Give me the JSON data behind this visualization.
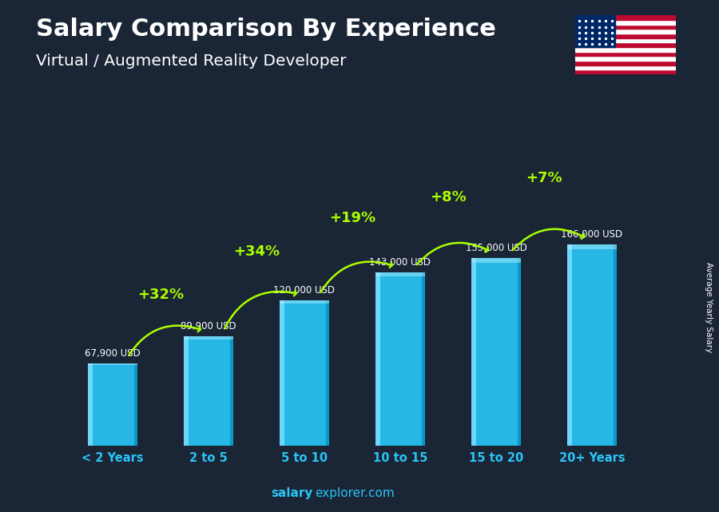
{
  "title_line1": "Salary Comparison By Experience",
  "title_line2": "Virtual / Augmented Reality Developer",
  "categories": [
    "< 2 Years",
    "2 to 5",
    "5 to 10",
    "10 to 15",
    "15 to 20",
    "20+ Years"
  ],
  "values": [
    67900,
    89900,
    120000,
    143000,
    155000,
    166000
  ],
  "value_labels": [
    "67,900 USD",
    "89,900 USD",
    "120,000 USD",
    "143,000 USD",
    "155,000 USD",
    "166,000 USD"
  ],
  "pct_labels": [
    "+32%",
    "+34%",
    "+19%",
    "+8%",
    "+7%"
  ],
  "bar_color_main": "#29c5f6",
  "bar_color_light": "#7addff",
  "bar_color_dark": "#0090c0",
  "bar_color_top": "#aaeeff",
  "bg_color": "#1a2535",
  "title_color": "#FFFFFF",
  "subtitle_color": "#FFFFFF",
  "value_label_color": "#FFFFFF",
  "pct_color": "#aaff00",
  "xlabel_color": "#29c5f6",
  "ylabel_text": "Average Yearly Salary",
  "footer_salary": "salary",
  "footer_rest": "explorer.com",
  "footer_color_bold": "#29c5f6",
  "footer_color_rest": "#29c5f6",
  "ylim": [
    0,
    220000
  ]
}
